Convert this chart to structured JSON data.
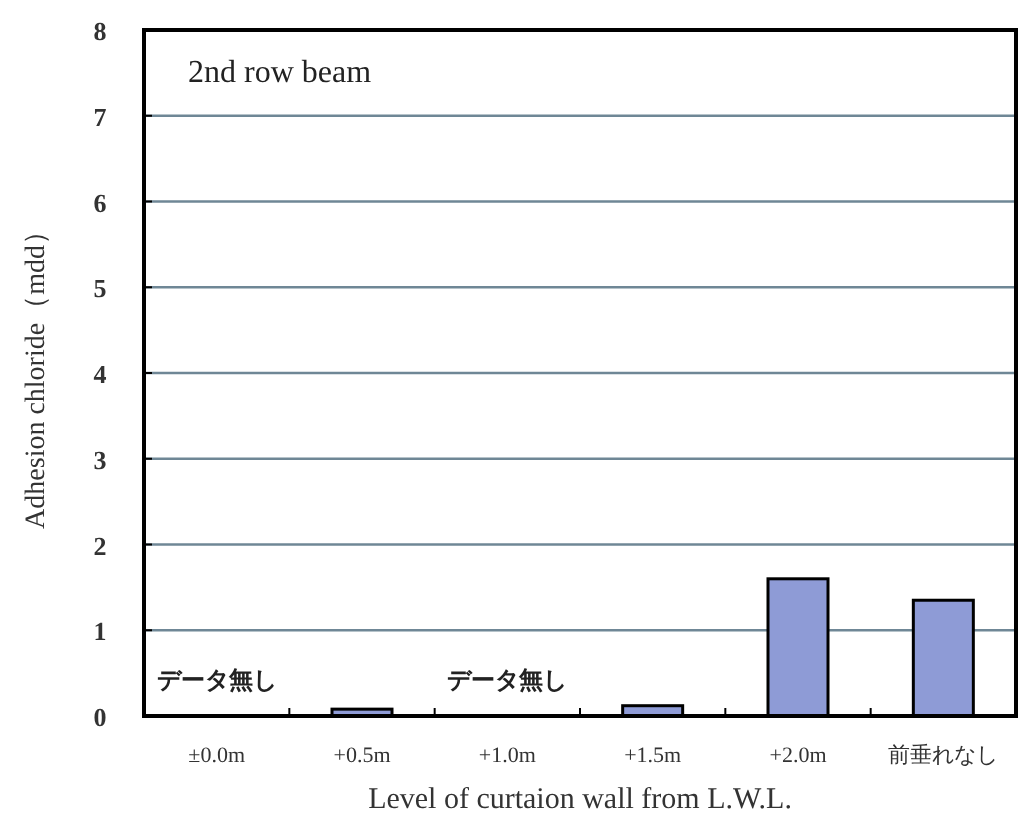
{
  "chart_data": {
    "type": "bar",
    "title": "2nd row beam",
    "xlabel": "Level of curtaion wall from L.W.L.",
    "ylabel": "Adhesion chloride（mdd）",
    "categories": [
      "±0.0m",
      "+0.5m",
      "+1.0m",
      "+1.5m",
      "+2.0m",
      "前垂れなし"
    ],
    "values": [
      null,
      0.08,
      null,
      0.12,
      1.6,
      1.35
    ],
    "color": "#8e9bd6",
    "ylim": [
      0,
      8
    ],
    "yticks": [
      0,
      1,
      2,
      3,
      4,
      5,
      6,
      7,
      8
    ],
    "grid": "y",
    "annotations": [
      "データ無し",
      "データ無し"
    ]
  }
}
